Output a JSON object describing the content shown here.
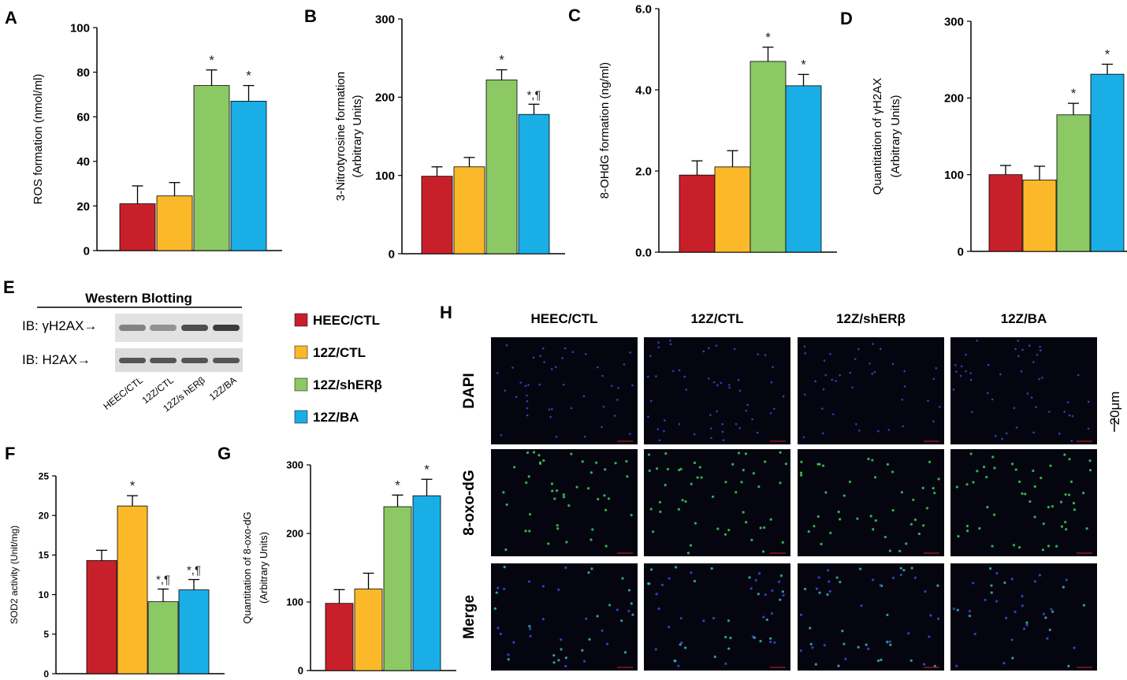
{
  "colors": {
    "HEEC/CTL": "#c8202a",
    "12Z/CTL": "#fbb92a",
    "12Z/shERβ": "#8cc965",
    "12Z/BA": "#1aaee6"
  },
  "legend": [
    "HEEC/CTL",
    "12Z/CTL",
    "12Z/shERβ",
    "12Z/BA"
  ],
  "chart_data": [
    {
      "id": "A",
      "type": "bar",
      "panel_label": "A",
      "categories": [
        "HEEC/CTL",
        "12Z/CTL",
        "12Z/shERβ",
        "12Z/BA"
      ],
      "values": [
        21,
        24.5,
        74,
        67
      ],
      "errors": [
        8,
        6,
        7,
        7
      ],
      "annotations": [
        "",
        "",
        "*",
        "*"
      ],
      "ylabel": "ROS formation (nmol/ml)",
      "ylabel2": "",
      "ylim": [
        0,
        100
      ],
      "ticks": [
        0,
        20,
        40,
        60,
        80,
        100
      ],
      "tick_labels": [
        "0",
        "20",
        "40",
        "60",
        "80",
        "100"
      ]
    },
    {
      "id": "B",
      "type": "bar",
      "panel_label": "B",
      "categories": [
        "HEEC/CTL",
        "12Z/CTL",
        "12Z/shERβ",
        "12Z/BA"
      ],
      "values": [
        99,
        111,
        222,
        178
      ],
      "errors": [
        12,
        12,
        13,
        13
      ],
      "annotations": [
        "",
        "",
        "*",
        "*,¶"
      ],
      "ylabel": "3-Nitrotyrosine formation",
      "ylabel2": "(Arbitrary Units)",
      "ylim": [
        0,
        300
      ],
      "ticks": [
        0,
        100,
        200,
        300
      ],
      "tick_labels": [
        "0",
        "100",
        "200",
        "300"
      ]
    },
    {
      "id": "C",
      "type": "bar",
      "panel_label": "C",
      "categories": [
        "HEEC/CTL",
        "12Z/CTL",
        "12Z/shERβ",
        "12Z/BA"
      ],
      "values": [
        1.9,
        2.1,
        4.7,
        4.1
      ],
      "errors": [
        0.35,
        0.4,
        0.35,
        0.28
      ],
      "annotations": [
        "",
        "",
        "*",
        "*"
      ],
      "ylabel": "8-OHdG formation (ng/ml)",
      "ylabel2": "",
      "ylim": [
        0,
        6
      ],
      "ticks": [
        0,
        2,
        4,
        6
      ],
      "tick_labels": [
        "0.0",
        "2.0",
        "4.0",
        "6.0"
      ]
    },
    {
      "id": "D",
      "type": "bar",
      "panel_label": "D",
      "categories": [
        "HEEC/CTL",
        "12Z/CTL",
        "12Z/shERβ",
        "12Z/BA"
      ],
      "values": [
        100,
        93,
        178,
        231
      ],
      "errors": [
        12,
        18,
        15,
        13
      ],
      "annotations": [
        "",
        "",
        "*",
        "*"
      ],
      "ylabel": "Quantitation of γH2AX",
      "ylabel2": "(Arbitrary Units)",
      "ylim": [
        0,
        300
      ],
      "ticks": [
        0,
        100,
        200,
        300
      ],
      "tick_labels": [
        "0",
        "100",
        "200",
        "300"
      ]
    },
    {
      "id": "F",
      "type": "bar",
      "panel_label": "F",
      "categories": [
        "HEEC/CTL",
        "12Z/CTL",
        "12Z/shERβ",
        "12Z/BA"
      ],
      "values": [
        14.3,
        21.2,
        9.1,
        10.6
      ],
      "errors": [
        1.3,
        1.3,
        1.6,
        1.3
      ],
      "annotations": [
        "",
        "*",
        "*,¶",
        "*,¶"
      ],
      "ylabel": "SOD2 activity (Unit/mg)",
      "ylabel2": "",
      "ylim": [
        0,
        25
      ],
      "ticks": [
        0,
        5,
        10,
        15,
        20,
        25
      ],
      "tick_labels": [
        "0",
        "5",
        "10",
        "15",
        "20",
        "25"
      ]
    },
    {
      "id": "G",
      "type": "bar",
      "panel_label": "G",
      "categories": [
        "HEEC/CTL",
        "12Z/CTL",
        "12Z/shERβ",
        "12Z/BA"
      ],
      "values": [
        98,
        119,
        239,
        255
      ],
      "errors": [
        20,
        23,
        17,
        24
      ],
      "annotations": [
        "",
        "",
        "*",
        "*"
      ],
      "ylabel": "Quantitation of 8-oxo-dG",
      "ylabel2": "(Arbitrary Units)",
      "ylim": [
        0,
        300
      ],
      "ticks": [
        0,
        100,
        200,
        300
      ],
      "tick_labels": [
        "0",
        "100",
        "200",
        "300"
      ]
    }
  ],
  "western": {
    "panel_label": "E",
    "title": "Western Blotting",
    "row1": "IB: γH2AX→",
    "row2": "IB: H2AX→",
    "lanes": [
      "HEEC/CTL",
      "12Z/CTL",
      "12Z/s hERβ",
      "12Z/BA"
    ]
  },
  "microscopy": {
    "panel_label": "H",
    "columns": [
      "HEEC/CTL",
      "12Z/CTL",
      "12Z/shERβ",
      "12Z/BA"
    ],
    "rows": [
      "DAPI",
      "8-oxo-dG",
      "Merge"
    ],
    "scale_bar": "20μm"
  }
}
